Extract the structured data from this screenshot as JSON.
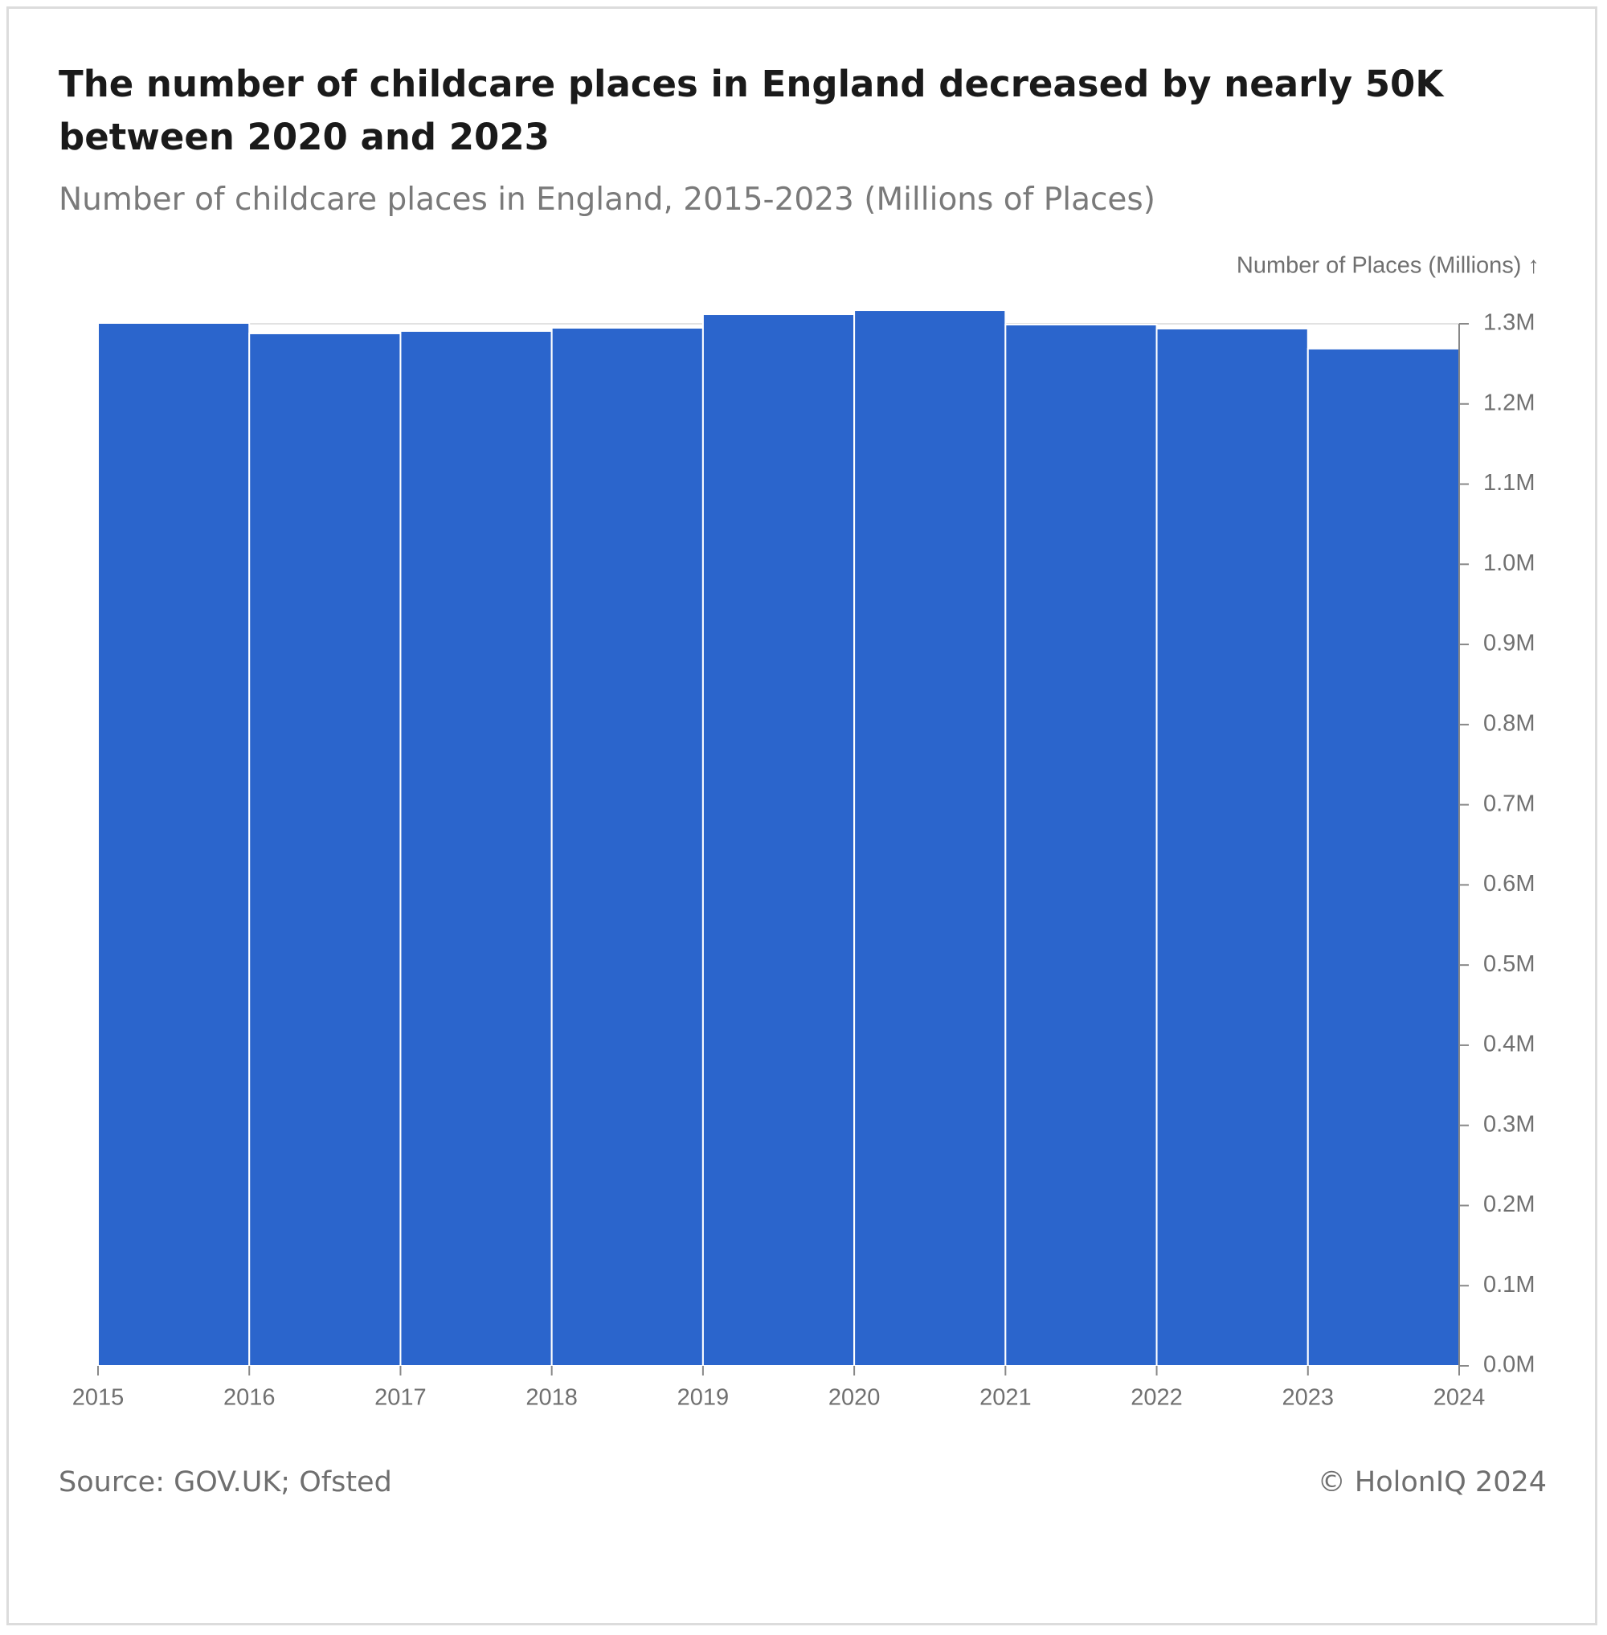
{
  "chart_data": {
    "type": "histogram",
    "title": "The number of childcare places in England decreased by nearly 50K between 2020 and 2023",
    "subtitle": "Number of childcare places in England, 2015-2023 (Millions of Places)",
    "y_label": "Number of Places (Millions) ↑",
    "source": "Source: GOV.UK; Ofsted",
    "copyright": "© HolonIQ 2024",
    "bins": [
      2015,
      2016,
      2017,
      2018,
      2019,
      2020,
      2021,
      2022,
      2023,
      2024
    ],
    "values": [
      1.301,
      1.288,
      1.291,
      1.295,
      1.312,
      1.317,
      1.299,
      1.294,
      1.269
    ],
    "color": "#2b65cc",
    "xlim": [
      2015,
      2024
    ],
    "xticks": [
      2015,
      2016,
      2017,
      2018,
      2019,
      2020,
      2021,
      2022,
      2023,
      2024
    ],
    "ylim": [
      0,
      1.3
    ],
    "yticks": [
      {
        "value": 0,
        "label": "0.0M"
      },
      {
        "value": 0.1,
        "label": "0.1M"
      },
      {
        "value": 0.2,
        "label": "0.2M"
      },
      {
        "value": 0.3,
        "label": "0.3M"
      },
      {
        "value": 0.4,
        "label": "0.4M"
      },
      {
        "value": 0.5,
        "label": "0.5M"
      },
      {
        "value": 0.6,
        "label": "0.6M"
      },
      {
        "value": 0.7,
        "label": "0.7M"
      },
      {
        "value": 0.8,
        "label": "0.8M"
      },
      {
        "value": 0.9,
        "label": "0.9M"
      },
      {
        "value": 1.0,
        "label": "1.0M"
      },
      {
        "value": 1.1,
        "label": "1.1M"
      },
      {
        "value": 1.2,
        "label": "1.2M"
      },
      {
        "value": 1.3,
        "label": "1.3M"
      }
    ],
    "y_axis_side": "right",
    "grid": true
  }
}
